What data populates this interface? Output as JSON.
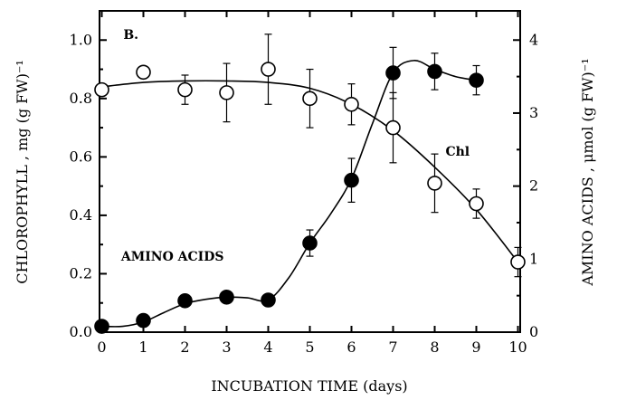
{
  "chart_data": {
    "type": "scatter",
    "panel_label": "B.",
    "xlabel": "INCUBATION TIME (days)",
    "ylabel_left": "CHLOROPHYLL , mg (g FW)⁻¹",
    "ylabel_right": "AMINO ACIDS , μmol (g FW)⁻¹",
    "x_ticks": [
      "0",
      "1",
      "2",
      "3",
      "4",
      "5",
      "6",
      "7",
      "8",
      "9",
      "10"
    ],
    "y_left_ticks": [
      "0.0",
      "0.2",
      "0.4",
      "0.6",
      "0.8",
      "1.0"
    ],
    "y_right_ticks": [
      "0",
      "1",
      "2",
      "3",
      "4"
    ],
    "xlim": [
      0,
      10
    ],
    "ylim_left": [
      0,
      1.1
    ],
    "ylim_right": [
      0,
      4.4
    ],
    "grid": false,
    "series": [
      {
        "name": "Chl",
        "axis": "left",
        "marker": "open-circle",
        "x": [
          0,
          1,
          2,
          3,
          4,
          5,
          6,
          7,
          8,
          9,
          10
        ],
        "y": [
          0.83,
          0.89,
          0.83,
          0.82,
          0.9,
          0.8,
          0.78,
          0.7,
          0.51,
          0.44,
          0.24
        ],
        "err": [
          0.02,
          0.02,
          0.05,
          0.1,
          0.12,
          0.1,
          0.07,
          0.12,
          0.1,
          0.05,
          0.05
        ],
        "fit": [
          [
            0,
            0.84
          ],
          [
            1,
            0.855
          ],
          [
            2,
            0.86
          ],
          [
            3,
            0.86
          ],
          [
            4,
            0.855
          ],
          [
            5,
            0.835
          ],
          [
            6,
            0.78
          ],
          [
            7,
            0.69
          ],
          [
            8,
            0.565
          ],
          [
            9,
            0.42
          ],
          [
            10,
            0.24
          ]
        ]
      },
      {
        "name": "AMINO ACIDS",
        "axis": "right",
        "marker": "filled-circle",
        "x": [
          0,
          1,
          2,
          3,
          4,
          5,
          6,
          7,
          8,
          9
        ],
        "y": [
          0.08,
          0.16,
          0.43,
          0.48,
          0.44,
          1.22,
          2.08,
          3.55,
          3.57,
          3.45
        ],
        "err": [
          0.03,
          0.03,
          0.06,
          0.05,
          0.03,
          0.18,
          0.3,
          0.35,
          0.25,
          0.2
        ],
        "fit": [
          [
            0,
            0.08
          ],
          [
            0.5,
            0.08
          ],
          [
            1,
            0.14
          ],
          [
            1.5,
            0.27
          ],
          [
            2,
            0.39
          ],
          [
            2.5,
            0.45
          ],
          [
            3,
            0.48
          ],
          [
            3.5,
            0.47
          ],
          [
            4,
            0.44
          ],
          [
            4.5,
            0.75
          ],
          [
            5,
            1.22
          ],
          [
            5.5,
            1.62
          ],
          [
            6,
            2.1
          ],
          [
            6.5,
            2.85
          ],
          [
            7,
            3.55
          ],
          [
            7.5,
            3.72
          ],
          [
            8,
            3.6
          ],
          [
            8.5,
            3.5
          ],
          [
            9,
            3.45
          ]
        ]
      }
    ],
    "annotations": [
      {
        "text": "B.",
        "x": 0.7,
        "y_left": 1.02
      },
      {
        "text": "Chl",
        "x": 8.55,
        "y_left": 0.62
      },
      {
        "text": "AMINO ACIDS",
        "x": 1.7,
        "y_left": 0.26
      }
    ]
  }
}
